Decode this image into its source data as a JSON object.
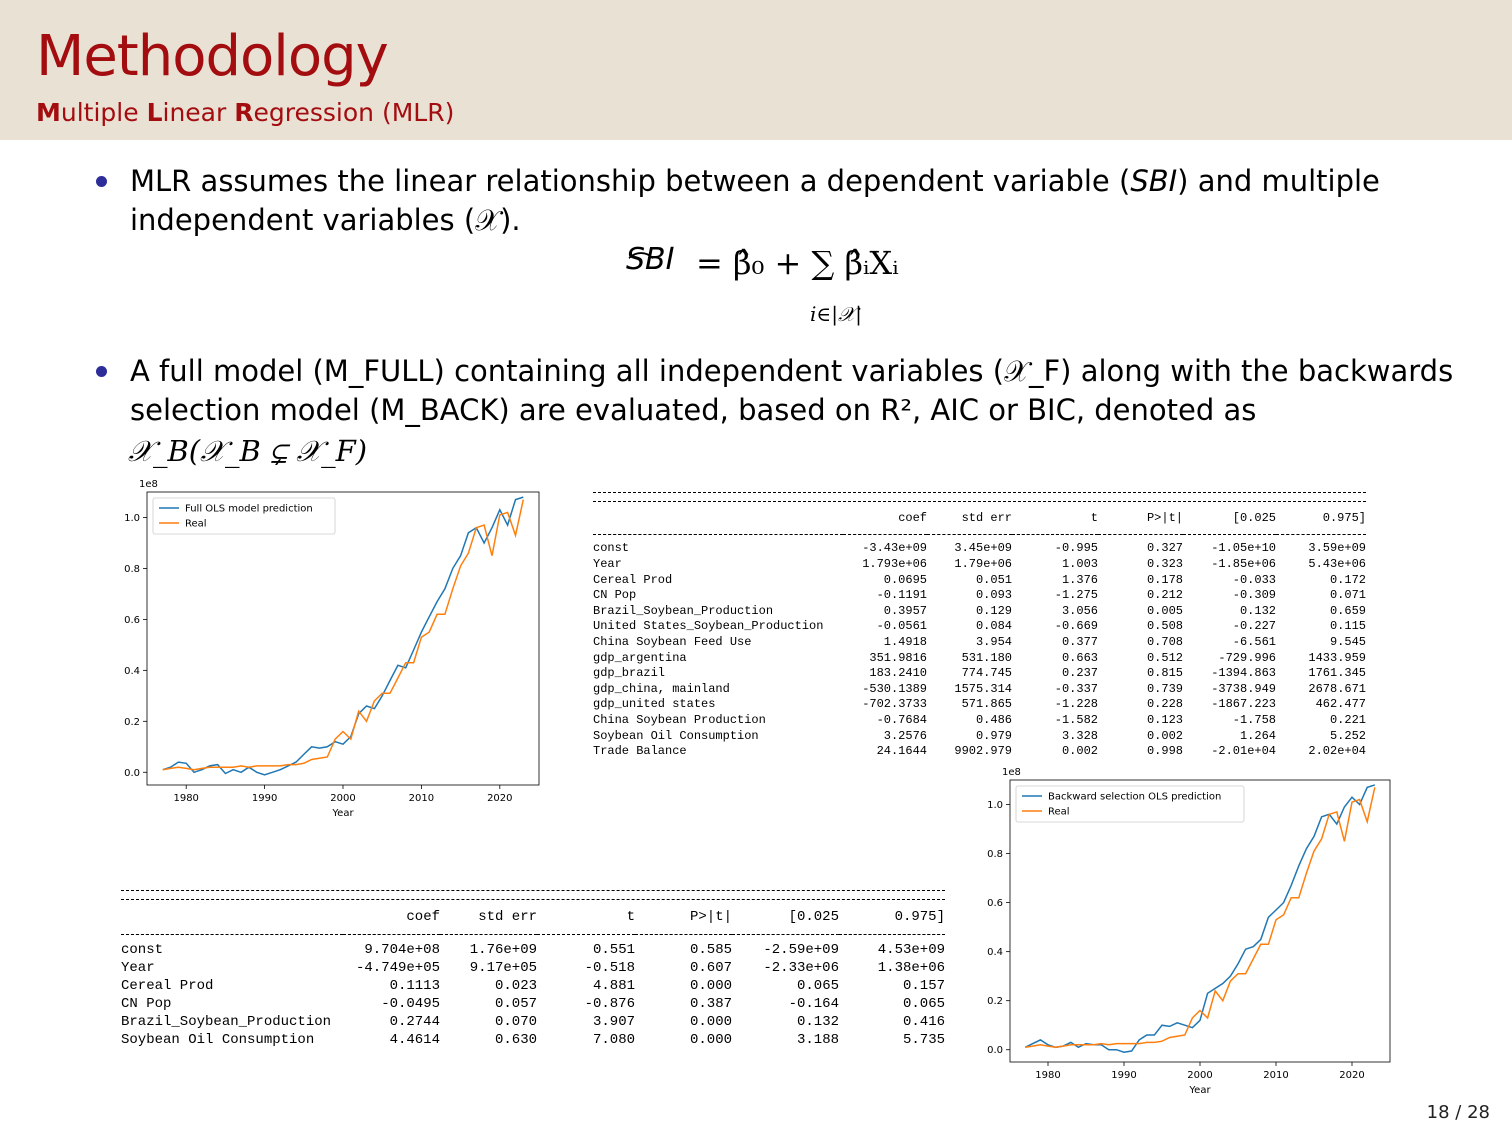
{
  "header": {
    "title": "Methodology",
    "subtitle": [
      {
        "cap": "M",
        "rest": "ultiple "
      },
      {
        "cap": "L",
        "rest": "inear "
      },
      {
        "cap": "R",
        "rest": "egression (MLR)"
      }
    ]
  },
  "bullets": {
    "b1_line1_pre": "MLR assumes the linear relationship between a dependent variable (",
    "b1_sbi": "SBI",
    "b1_line1_post": ") and multiple",
    "b1_line2": "independent variables (𝒳).",
    "equation": {
      "lhs": "SBI",
      "rhs": "= β̂₀ + ∑ β̂ᵢXᵢ",
      "sub": "i∈|𝒳|"
    },
    "b2_line1": "A full model (M_FULL) containing all independent variables (𝒳_F) along with the backwards",
    "b2_line2": "selection model (M_BACK) are evaluated, based on R², AIC or BIC, denoted as",
    "b2_line3": "𝒳_B(𝒳_B ⊊ 𝒳_F)"
  },
  "table_full": {
    "headers": [
      "",
      "coef",
      "std err",
      "t",
      "P>|t|",
      "[0.025",
      "0.975]"
    ],
    "rows": [
      [
        "const",
        "-3.43e+09",
        "3.45e+09",
        "-0.995",
        "0.327",
        "-1.05e+10",
        "3.59e+09"
      ],
      [
        "Year",
        "1.793e+06",
        "1.79e+06",
        "1.003",
        "0.323",
        "-1.85e+06",
        "5.43e+06"
      ],
      [
        "Cereal Prod",
        "0.0695",
        "0.051",
        "1.376",
        "0.178",
        "-0.033",
        "0.172"
      ],
      [
        "CN Pop",
        "-0.1191",
        "0.093",
        "-1.275",
        "0.212",
        "-0.309",
        "0.071"
      ],
      [
        "Brazil_Soybean_Production",
        "0.3957",
        "0.129",
        "3.056",
        "0.005",
        "0.132",
        "0.659"
      ],
      [
        "United States_Soybean_Production",
        "-0.0561",
        "0.084",
        "-0.669",
        "0.508",
        "-0.227",
        "0.115"
      ],
      [
        "China Soybean Feed Use",
        "1.4918",
        "3.954",
        "0.377",
        "0.708",
        "-6.561",
        "9.545"
      ],
      [
        "gdp_argentina",
        "351.9816",
        "531.180",
        "0.663",
        "0.512",
        "-729.996",
        "1433.959"
      ],
      [
        "gdp_brazil",
        "183.2410",
        "774.745",
        "0.237",
        "0.815",
        "-1394.863",
        "1761.345"
      ],
      [
        "gdp_china, mainland",
        "-530.1389",
        "1575.314",
        "-0.337",
        "0.739",
        "-3738.949",
        "2678.671"
      ],
      [
        "gdp_united states",
        "-702.3733",
        "571.865",
        "-1.228",
        "0.228",
        "-1867.223",
        "462.477"
      ],
      [
        "China Soybean Production",
        "-0.7684",
        "0.486",
        "-1.582",
        "0.123",
        "-1.758",
        "0.221"
      ],
      [
        "Soybean Oil Consumption",
        "3.2576",
        "0.979",
        "3.328",
        "0.002",
        "1.264",
        "5.252"
      ],
      [
        "Trade Balance",
        "24.1644",
        "9902.979",
        "0.002",
        "0.998",
        "-2.01e+04",
        "2.02e+04"
      ]
    ]
  },
  "table_back": {
    "headers": [
      "",
      "coef",
      "std err",
      "t",
      "P>|t|",
      "[0.025",
      "0.975]"
    ],
    "rows": [
      [
        "const",
        "9.704e+08",
        "1.76e+09",
        "0.551",
        "0.585",
        "-2.59e+09",
        "4.53e+09"
      ],
      [
        "Year",
        "-4.749e+05",
        "9.17e+05",
        "-0.518",
        "0.607",
        "-2.33e+06",
        "1.38e+06"
      ],
      [
        "Cereal Prod",
        "0.1113",
        "0.023",
        "4.881",
        "0.000",
        "0.065",
        "0.157"
      ],
      [
        "CN Pop",
        "-0.0495",
        "0.057",
        "-0.876",
        "0.387",
        "-0.164",
        "0.065"
      ],
      [
        "Brazil_Soybean_Production",
        "0.2744",
        "0.070",
        "3.907",
        "0.000",
        "0.132",
        "0.416"
      ],
      [
        "Soybean Oil Consumption",
        "4.4614",
        "0.630",
        "7.080",
        "0.000",
        "3.188",
        "5.735"
      ]
    ]
  },
  "chart_data": [
    {
      "type": "line",
      "offset_label": "1e8",
      "xlabel": "Year",
      "xlim": [
        1975,
        2025
      ],
      "ylim": [
        -0.05,
        1.1
      ],
      "xticks": [
        1980,
        1990,
        2000,
        2010,
        2020
      ],
      "yticks": [
        0.0,
        0.2,
        0.4,
        0.6,
        0.8,
        1.0
      ],
      "legend_position": "top-left",
      "x": [
        1977,
        1978,
        1979,
        1980,
        1981,
        1982,
        1983,
        1984,
        1985,
        1986,
        1987,
        1988,
        1989,
        1990,
        1991,
        1992,
        1993,
        1994,
        1995,
        1996,
        1997,
        1998,
        1999,
        2000,
        2001,
        2002,
        2003,
        2004,
        2005,
        2006,
        2007,
        2008,
        2009,
        2010,
        2011,
        2012,
        2013,
        2014,
        2015,
        2016,
        2017,
        2018,
        2019,
        2020,
        2021,
        2022,
        2023
      ],
      "series": [
        {
          "name": "Full OLS model prediction",
          "color": "#1f77b4",
          "values": [
            0.01,
            0.02,
            0.04,
            0.035,
            0.0,
            0.01,
            0.025,
            0.03,
            -0.005,
            0.01,
            0.0,
            0.02,
            0.0,
            -0.01,
            0.0,
            0.01,
            0.025,
            0.04,
            0.07,
            0.1,
            0.095,
            0.1,
            0.12,
            0.11,
            0.14,
            0.23,
            0.26,
            0.25,
            0.3,
            0.36,
            0.42,
            0.41,
            0.48,
            0.55,
            0.61,
            0.67,
            0.72,
            0.8,
            0.85,
            0.94,
            0.96,
            0.9,
            0.96,
            1.03,
            0.97,
            1.07,
            1.08
          ]
        },
        {
          "name": "Real",
          "color": "#ff7f0e",
          "values": [
            0.01,
            0.015,
            0.02,
            0.015,
            0.01,
            0.015,
            0.02,
            0.02,
            0.02,
            0.02,
            0.025,
            0.02,
            0.025,
            0.025,
            0.025,
            0.025,
            0.03,
            0.03,
            0.035,
            0.05,
            0.055,
            0.06,
            0.13,
            0.16,
            0.13,
            0.24,
            0.2,
            0.28,
            0.31,
            0.31,
            0.37,
            0.43,
            0.43,
            0.53,
            0.55,
            0.62,
            0.62,
            0.72,
            0.81,
            0.86,
            0.96,
            0.97,
            0.85,
            1.01,
            1.02,
            0.93,
            1.07
          ]
        }
      ]
    },
    {
      "type": "line",
      "offset_label": "1e8",
      "xlabel": "Year",
      "xlim": [
        1975,
        2025
      ],
      "ylim": [
        -0.05,
        1.1
      ],
      "xticks": [
        1980,
        1990,
        2000,
        2010,
        2020
      ],
      "yticks": [
        0.0,
        0.2,
        0.4,
        0.6,
        0.8,
        1.0
      ],
      "legend_position": "top-left",
      "x": [
        1977,
        1978,
        1979,
        1980,
        1981,
        1982,
        1983,
        1984,
        1985,
        1986,
        1987,
        1988,
        1989,
        1990,
        1991,
        1992,
        1993,
        1994,
        1995,
        1996,
        1997,
        1998,
        1999,
        2000,
        2001,
        2002,
        2003,
        2004,
        2005,
        2006,
        2007,
        2008,
        2009,
        2010,
        2011,
        2012,
        2013,
        2014,
        2015,
        2016,
        2017,
        2018,
        2019,
        2020,
        2021,
        2022,
        2023
      ],
      "series": [
        {
          "name": "Backward selection OLS prediction",
          "color": "#1f77b4",
          "values": [
            0.01,
            0.025,
            0.04,
            0.02,
            0.01,
            0.015,
            0.03,
            0.01,
            0.025,
            0.02,
            0.02,
            0.0,
            0.0,
            -0.01,
            -0.005,
            0.04,
            0.06,
            0.06,
            0.1,
            0.095,
            0.11,
            0.1,
            0.09,
            0.12,
            0.23,
            0.25,
            0.27,
            0.3,
            0.35,
            0.41,
            0.42,
            0.45,
            0.54,
            0.57,
            0.6,
            0.67,
            0.75,
            0.82,
            0.87,
            0.95,
            0.96,
            0.92,
            0.99,
            1.03,
            1.0,
            1.07,
            1.08
          ]
        },
        {
          "name": "Real",
          "color": "#ff7f0e",
          "values": [
            0.01,
            0.015,
            0.02,
            0.015,
            0.01,
            0.015,
            0.02,
            0.02,
            0.02,
            0.02,
            0.025,
            0.02,
            0.025,
            0.025,
            0.025,
            0.025,
            0.03,
            0.03,
            0.035,
            0.05,
            0.055,
            0.06,
            0.13,
            0.16,
            0.13,
            0.24,
            0.2,
            0.28,
            0.31,
            0.31,
            0.37,
            0.43,
            0.43,
            0.53,
            0.55,
            0.62,
            0.62,
            0.72,
            0.81,
            0.86,
            0.96,
            0.97,
            0.85,
            1.01,
            1.02,
            0.93,
            1.07
          ]
        }
      ]
    }
  ],
  "page": {
    "number": "18 / 28"
  }
}
